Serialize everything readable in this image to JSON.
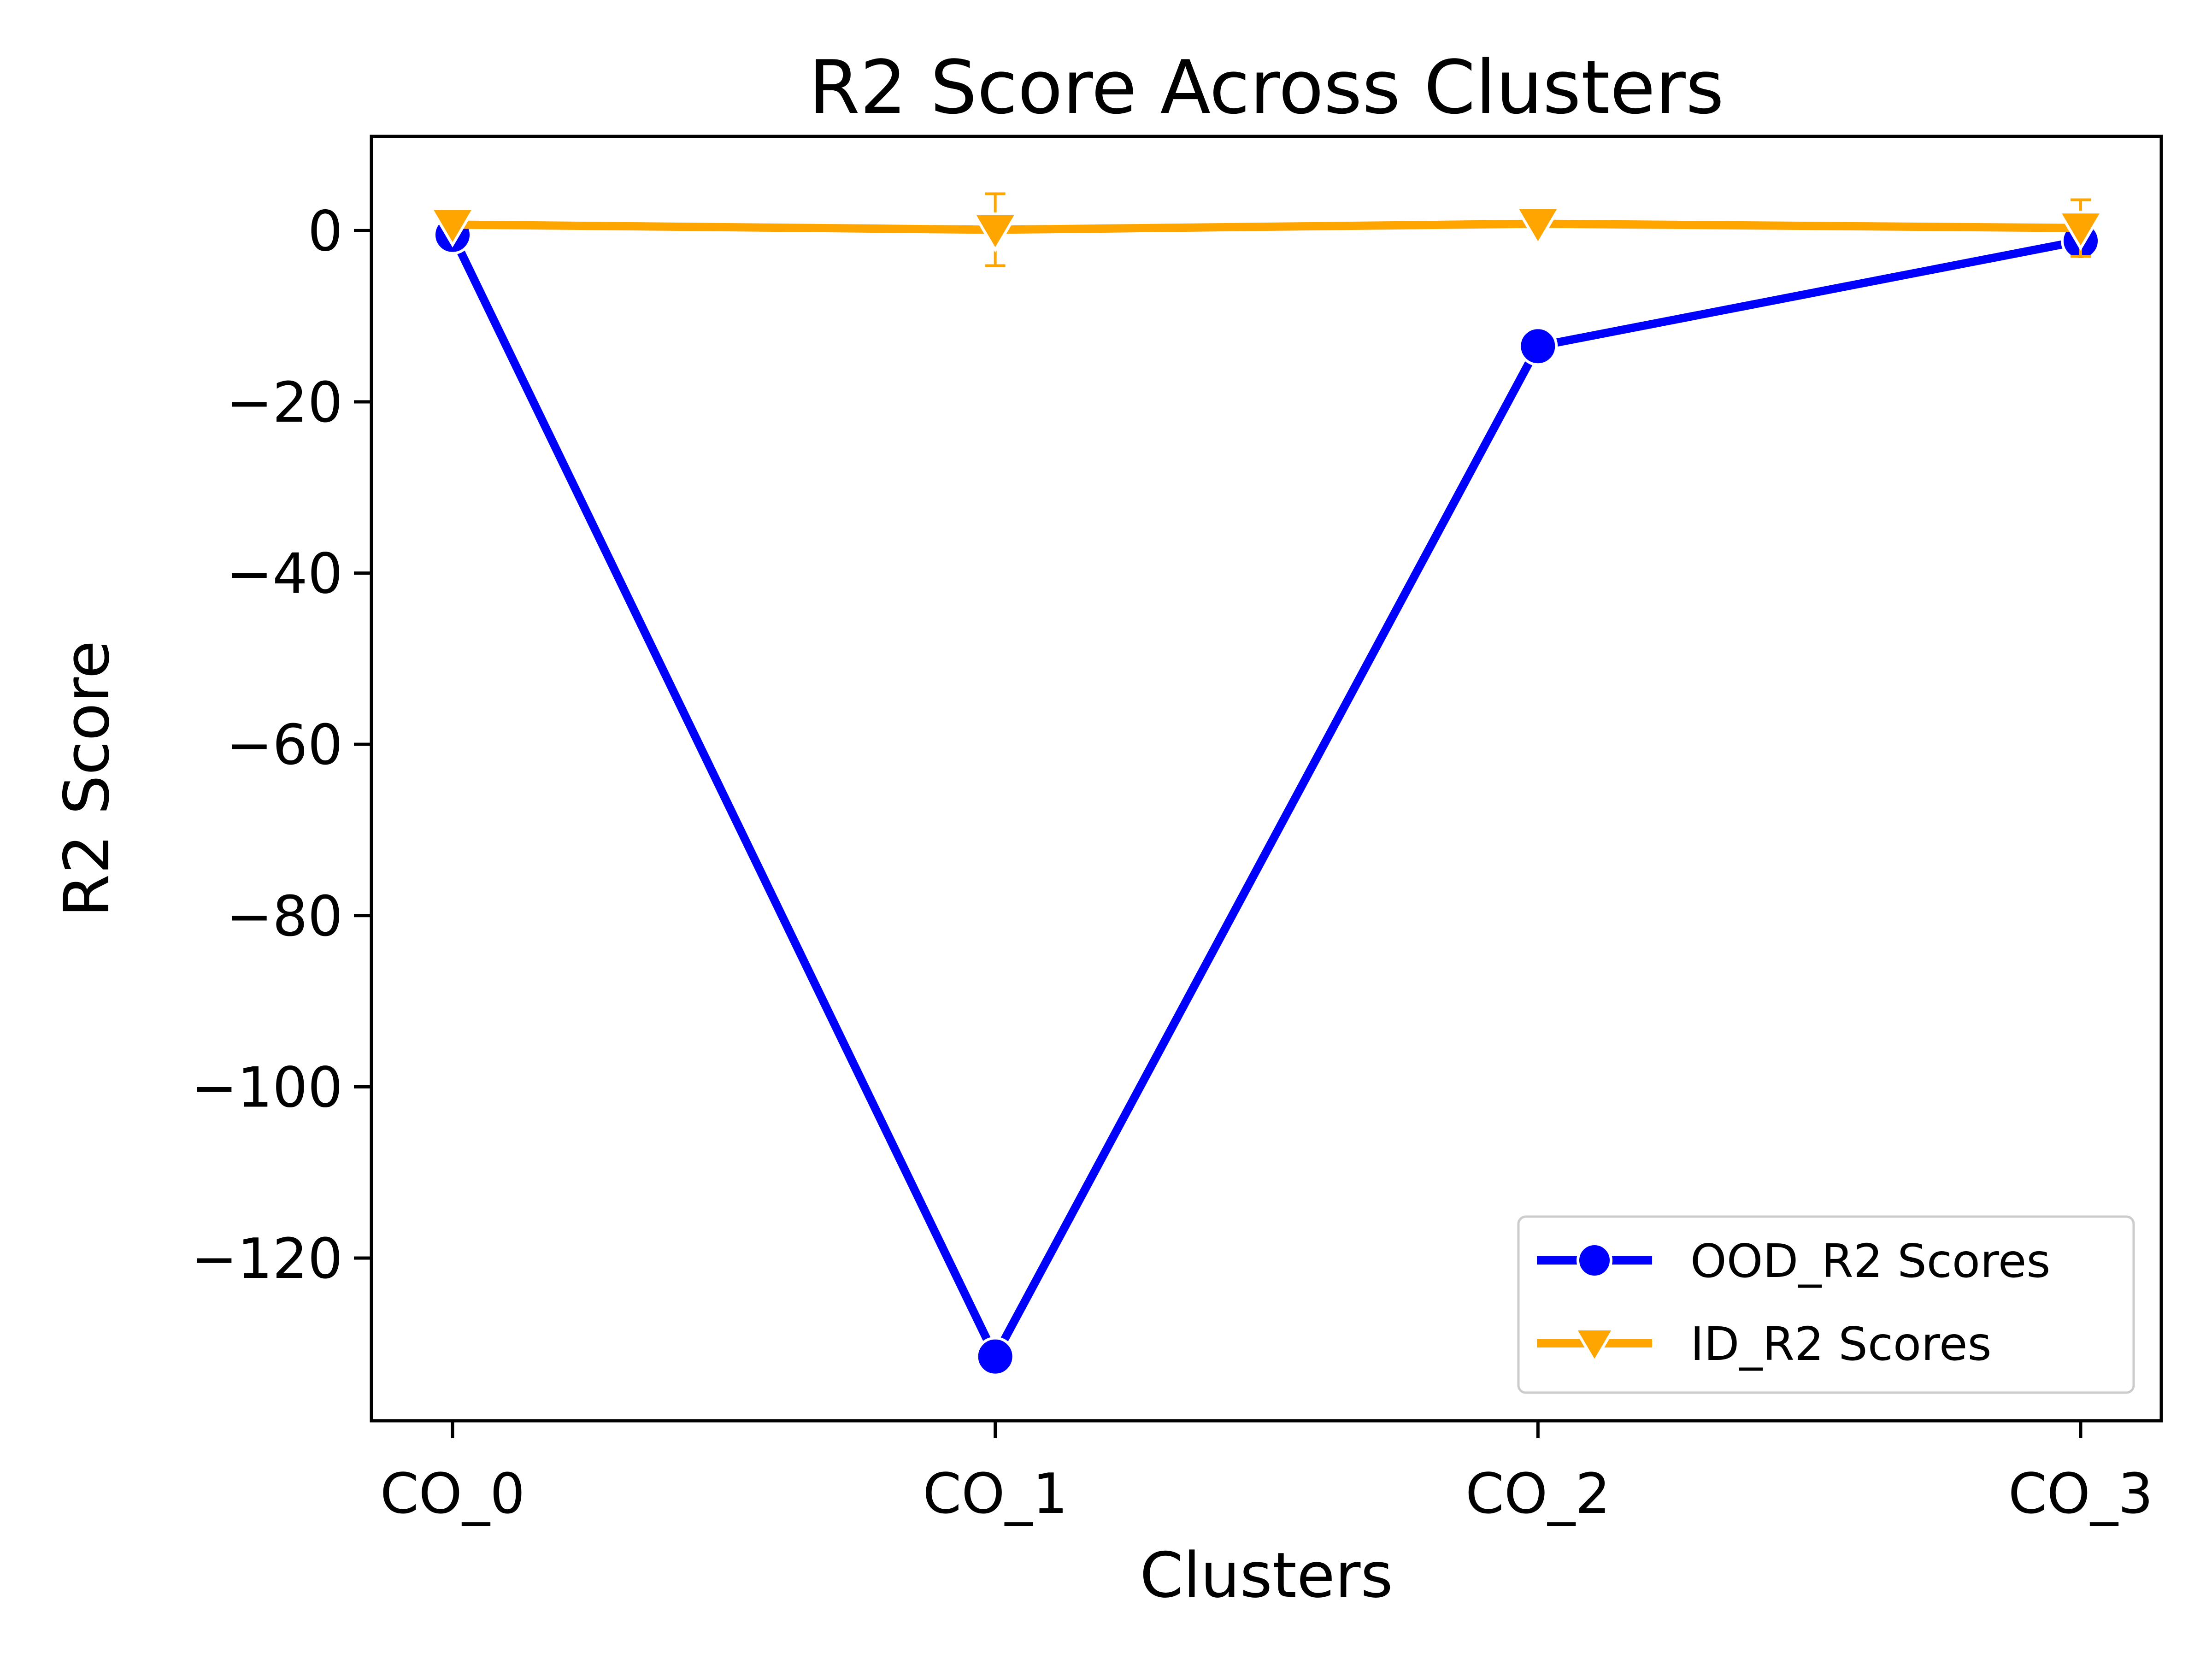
{
  "chart_data": {
    "type": "line",
    "title": "R2 Score Across Clusters",
    "xlabel": "Clusters",
    "ylabel": "R2 Score",
    "categories": [
      "CO_0",
      "CO_1",
      "CO_2",
      "CO_3"
    ],
    "ylim": [
      -139,
      11
    ],
    "yticks": [
      0,
      -20,
      -40,
      -60,
      -80,
      -100,
      -120
    ],
    "ytick_labels": [
      "0",
      "−20",
      "−40",
      "−60",
      "−80",
      "−100",
      "−120"
    ],
    "grid": false,
    "legend_position": "bottom-right",
    "series": [
      {
        "name": "OOD_R2 Scores",
        "values": [
          -0.5,
          -131.5,
          -13.5,
          -1.2
        ],
        "color": "#0000ff",
        "marker": "circle"
      },
      {
        "name": "ID_R2 Scores",
        "values": [
          0.7,
          0.1,
          0.8,
          0.3
        ],
        "errors": [
          0.4,
          4.2,
          0.3,
          3.3
        ],
        "color": "#ffa500",
        "marker": "triangle-down"
      }
    ]
  }
}
